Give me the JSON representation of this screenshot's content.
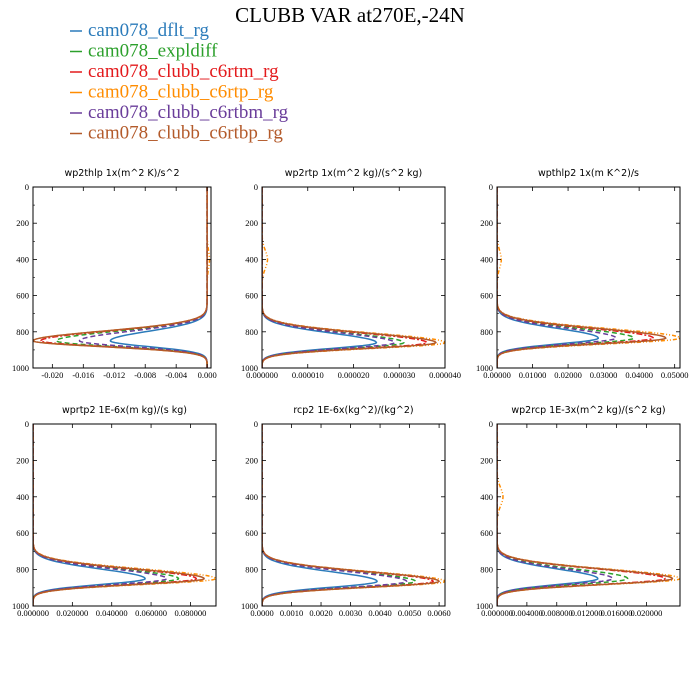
{
  "title": "CLUBB VAR at270E,-24N",
  "colors": {
    "cam078_dflt_rg": "#2b7bba",
    "cam078_expldiff": "#2ca02c",
    "cam078_clubb_c6rtm_rg": "#e31a1c",
    "cam078_clubb_c6rtp_rg": "#ff8c00",
    "cam078_clubb_c6rtbm_rg": "#6a3d9a",
    "cam078_clubb_c6rtbp_rg": "#b35a2a"
  },
  "legend": [
    {
      "name": "cam078_dflt_rg",
      "color": "#2b7bba",
      "dash": ""
    },
    {
      "name": "cam078_expldiff",
      "color": "#2ca02c",
      "dash": "5,3"
    },
    {
      "name": "cam078_clubb_c6rtm_rg",
      "color": "#e31a1c",
      "dash": "6,2,2,2"
    },
    {
      "name": "cam078_clubb_c6rtp_rg",
      "color": "#ff8c00",
      "dash": "4,2,1,2,1,2"
    },
    {
      "name": "cam078_clubb_c6rtbm_rg",
      "color": "#6a3d9a",
      "dash": "5,3"
    },
    {
      "name": "cam078_clubb_c6rtbp_rg",
      "color": "#b35a2a",
      "dash": ""
    }
  ],
  "chart_data": [
    {
      "type": "line",
      "title": "wp2thlp   1x(m^2 K)/s^2",
      "xlim": [
        -0.0225,
        0.0005
      ],
      "ylim": [
        0,
        1000
      ],
      "y_reversed": true,
      "xticks": [
        -0.02,
        -0.016,
        -0.012,
        -0.008,
        -0.004,
        0.0
      ],
      "xtick_labels": [
        "-0.020",
        "-0.016",
        "-0.012",
        "-0.008",
        "-0.004",
        "0.000"
      ],
      "yticks": [
        0,
        200,
        400,
        600,
        800,
        1000
      ],
      "ytick_labels": [
        "0",
        "200",
        "400",
        "600",
        "800",
        "1000"
      ],
      "base": 0.0,
      "peak_p": 850,
      "series": [
        {
          "name": "cam078_dflt_rg",
          "peak": -0.0125
        },
        {
          "name": "cam078_expldiff",
          "peak": -0.0195
        },
        {
          "name": "cam078_clubb_c6rtm_rg",
          "peak": -0.0215
        },
        {
          "name": "cam078_clubb_c6rtp_rg",
          "peak": -0.0225,
          "bump": 0.0003
        },
        {
          "name": "cam078_clubb_c6rtbm_rg",
          "peak": -0.0165
        },
        {
          "name": "cam078_clubb_c6rtbp_rg",
          "peak": -0.0225
        }
      ]
    },
    {
      "type": "line",
      "title": "wp2rtp   1x(m^2 kg)/(s^2 kg)",
      "xlim": [
        0,
        4e-05
      ],
      "ylim": [
        0,
        1000
      ],
      "y_reversed": true,
      "xticks": [
        0,
        1e-05,
        2e-05,
        3e-05,
        4e-05
      ],
      "xtick_labels": [
        "0.000000",
        "0.000010",
        "0.000020",
        "0.000030",
        "0.000040"
      ],
      "yticks": [
        0,
        200,
        400,
        600,
        800,
        1000
      ],
      "ytick_labels": [
        "0",
        "200",
        "400",
        "600",
        "800",
        "1000"
      ],
      "base": 0.0,
      "peak_p": 860,
      "series": [
        {
          "name": "cam078_dflt_rg",
          "peak": 2.5e-05
        },
        {
          "name": "cam078_expldiff",
          "peak": 3.1e-05
        },
        {
          "name": "cam078_clubb_c6rtm_rg",
          "peak": 3.6e-05
        },
        {
          "name": "cam078_clubb_c6rtp_rg",
          "peak": 4e-05,
          "bump": 1.2e-06
        },
        {
          "name": "cam078_clubb_c6rtbm_rg",
          "peak": 2.9e-05
        },
        {
          "name": "cam078_clubb_c6rtbp_rg",
          "peak": 3.8e-05
        }
      ]
    },
    {
      "type": "line",
      "title": "wpthlp2   1x(m K^2)/s",
      "xlim": [
        0,
        0.0515
      ],
      "ylim": [
        0,
        1000
      ],
      "y_reversed": true,
      "xticks": [
        0,
        0.01,
        0.02,
        0.03,
        0.04,
        0.05
      ],
      "xtick_labels": [
        "0.00000",
        "0.01000",
        "0.02000",
        "0.03000",
        "0.04000",
        "0.05000"
      ],
      "yticks": [
        0,
        200,
        400,
        600,
        800,
        1000
      ],
      "ytick_labels": [
        "0",
        "200",
        "400",
        "600",
        "800",
        "1000"
      ],
      "base": 0.0,
      "peak_p": 835,
      "series": [
        {
          "name": "cam078_dflt_rg",
          "peak": 0.0285
        },
        {
          "name": "cam078_expldiff",
          "peak": 0.0385
        },
        {
          "name": "cam078_clubb_c6rtm_rg",
          "peak": 0.044
        },
        {
          "name": "cam078_clubb_c6rtp_rg",
          "peak": 0.0515,
          "bump": 0.0012
        },
        {
          "name": "cam078_clubb_c6rtbm_rg",
          "peak": 0.0335
        },
        {
          "name": "cam078_clubb_c6rtbp_rg",
          "peak": 0.0475
        }
      ]
    },
    {
      "type": "line",
      "title": "wprtp2   1E-6x(m kg)/(s kg)",
      "xlim": [
        0,
        0.093
      ],
      "ylim": [
        0,
        1000
      ],
      "y_reversed": true,
      "xticks": [
        0,
        0.02,
        0.04,
        0.06,
        0.08
      ],
      "xtick_labels": [
        "0.000000",
        "0.020000",
        "0.040000",
        "0.060000",
        "0.080000"
      ],
      "yticks": [
        0,
        200,
        400,
        600,
        800,
        1000
      ],
      "ytick_labels": [
        "0",
        "200",
        "400",
        "600",
        "800",
        "1000"
      ],
      "base": 0.0,
      "peak_p": 850,
      "series": [
        {
          "name": "cam078_dflt_rg",
          "peak": 0.057
        },
        {
          "name": "cam078_expldiff",
          "peak": 0.074
        },
        {
          "name": "cam078_clubb_c6rtm_rg",
          "peak": 0.083
        },
        {
          "name": "cam078_clubb_c6rtp_rg",
          "peak": 0.093
        },
        {
          "name": "cam078_clubb_c6rtbm_rg",
          "peak": 0.068
        },
        {
          "name": "cam078_clubb_c6rtbp_rg",
          "peak": 0.087
        }
      ]
    },
    {
      "type": "line",
      "title": "rcp2   1E-6x(kg^2)/(kg^2)",
      "xlim": [
        0,
        0.0062
      ],
      "ylim": [
        0,
        1000
      ],
      "y_reversed": true,
      "xticks": [
        0,
        0.001,
        0.002,
        0.003,
        0.004,
        0.005,
        0.006
      ],
      "xtick_labels": [
        "0.0000",
        "0.0010",
        "0.0020",
        "0.0030",
        "0.0040",
        "0.0050",
        "0.0060"
      ],
      "yticks": [
        0,
        200,
        400,
        600,
        800,
        1000
      ],
      "ytick_labels": [
        "0",
        "200",
        "400",
        "600",
        "800",
        "1000"
      ],
      "base": 0.0,
      "peak_p": 865,
      "series": [
        {
          "name": "cam078_dflt_rg",
          "peak": 0.0039
        },
        {
          "name": "cam078_expldiff",
          "peak": 0.0052
        },
        {
          "name": "cam078_clubb_c6rtm_rg",
          "peak": 0.0058
        },
        {
          "name": "cam078_clubb_c6rtp_rg",
          "peak": 0.0062
        },
        {
          "name": "cam078_clubb_c6rtbm_rg",
          "peak": 0.0049
        },
        {
          "name": "cam078_clubb_c6rtbp_rg",
          "peak": 0.006
        }
      ]
    },
    {
      "type": "line",
      "title": "wp2rcp   1E-3x(m^2 kg)/(s^2 kg)",
      "xlim": [
        0,
        0.0245
      ],
      "ylim": [
        0,
        1000
      ],
      "y_reversed": true,
      "xticks": [
        0,
        0.004,
        0.008,
        0.012,
        0.016,
        0.02
      ],
      "xtick_labels": [
        "0.000000",
        "0.004000",
        "0.008000",
        "0.012000",
        "0.016000",
        "0.020000"
      ],
      "yticks": [
        0,
        200,
        400,
        600,
        800,
        1000
      ],
      "ytick_labels": [
        "0",
        "200",
        "400",
        "600",
        "800",
        "1000"
      ],
      "base": 0.0,
      "peak_p": 850,
      "series": [
        {
          "name": "cam078_dflt_rg",
          "peak": 0.0135
        },
        {
          "name": "cam078_expldiff",
          "peak": 0.0175
        },
        {
          "name": "cam078_clubb_c6rtm_rg",
          "peak": 0.0225
        },
        {
          "name": "cam078_clubb_c6rtp_rg",
          "peak": 0.0245,
          "bump": 0.0008
        },
        {
          "name": "cam078_clubb_c6rtbm_rg",
          "peak": 0.0155
        },
        {
          "name": "cam078_clubb_c6rtbp_rg",
          "peak": 0.0235
        }
      ]
    }
  ]
}
